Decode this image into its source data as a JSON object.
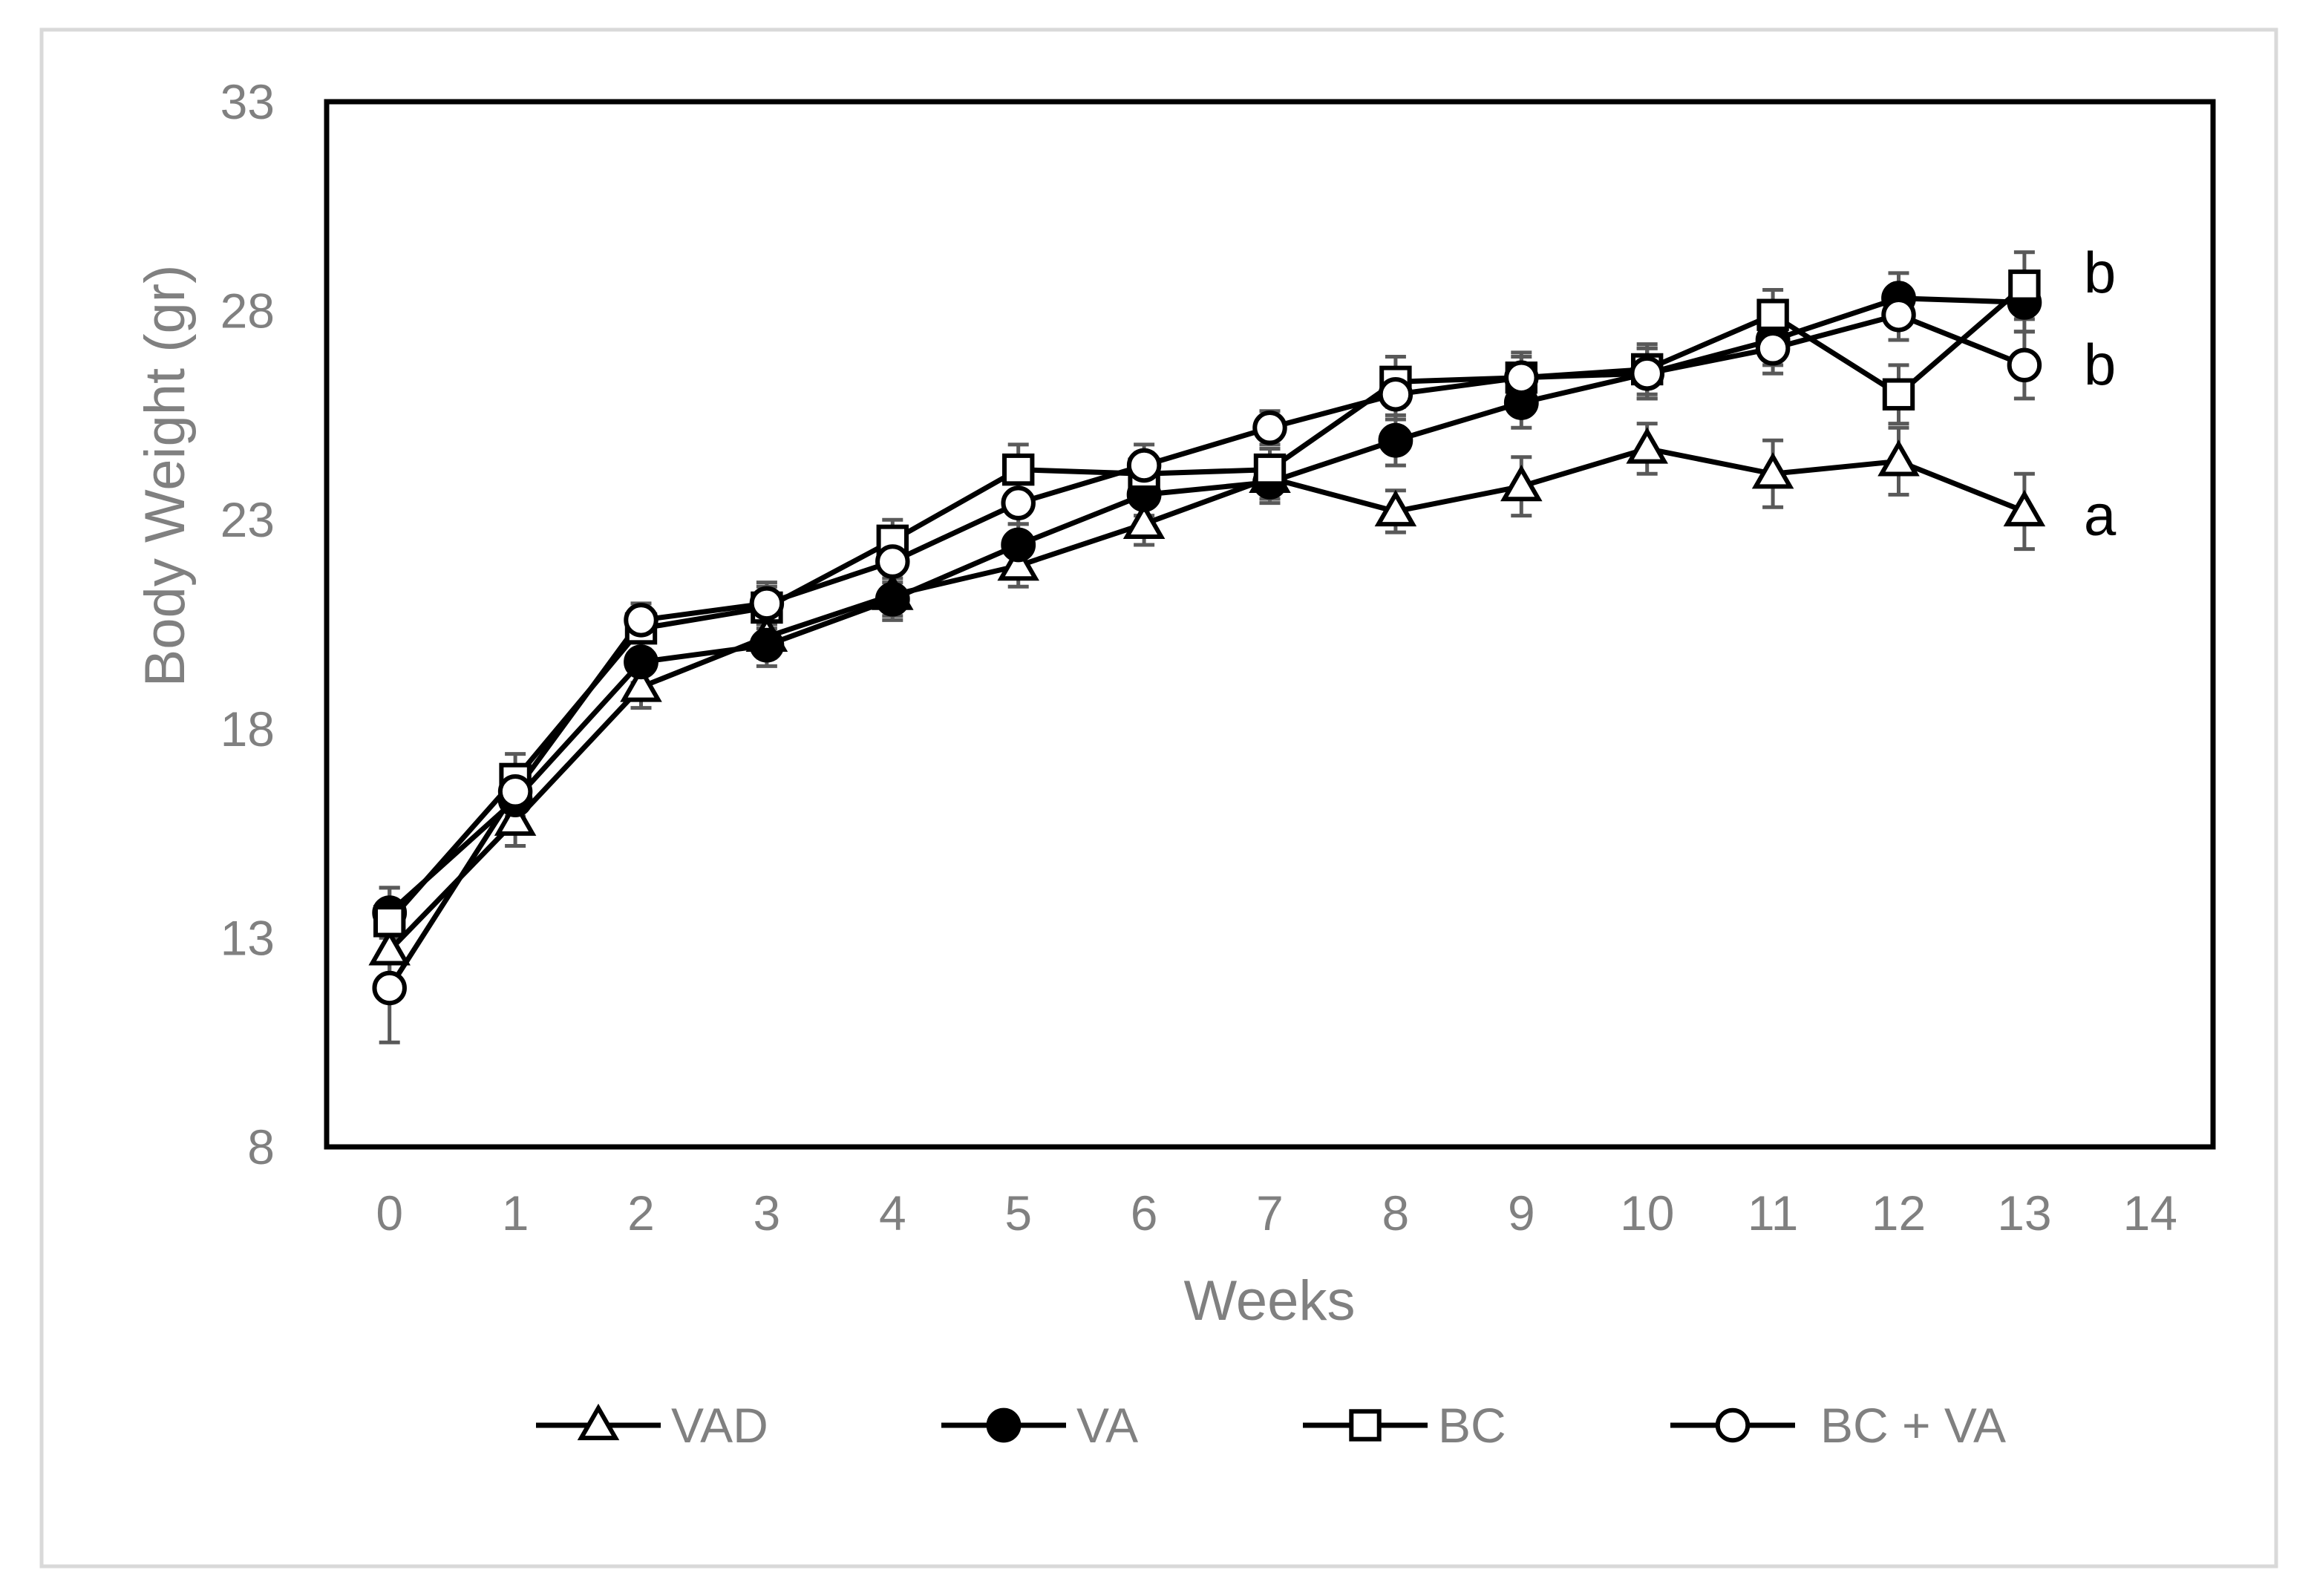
{
  "chart_data": {
    "type": "line",
    "title": "",
    "xlabel": "Weeks",
    "ylabel": "Body Weight (gr)",
    "xlim": [
      -0.5,
      14.5
    ],
    "ylim": [
      8,
      33
    ],
    "x_ticks": [
      0,
      1,
      2,
      3,
      4,
      5,
      6,
      7,
      8,
      9,
      10,
      11,
      12,
      13,
      14
    ],
    "y_ticks": [
      8,
      13,
      18,
      23,
      28,
      33
    ],
    "grid": false,
    "legend_position": "bottom",
    "x": [
      0,
      1,
      2,
      3,
      4,
      5,
      6,
      7,
      8,
      9,
      10,
      11,
      12,
      13
    ],
    "series": [
      {
        "name": "VAD",
        "marker": "open-triangle",
        "values": [
          12.7,
          15.8,
          19.0,
          20.2,
          21.2,
          21.9,
          22.9,
          24.0,
          23.2,
          23.8,
          24.7,
          24.1,
          24.4,
          23.2
        ],
        "errors": [
          0.7,
          0.6,
          0.5,
          0.5,
          0.5,
          0.5,
          0.5,
          0.5,
          0.5,
          0.7,
          0.6,
          0.8,
          0.8,
          0.9
        ]
      },
      {
        "name": "VA",
        "marker": "filled-circle",
        "values": [
          13.6,
          16.3,
          19.6,
          20.0,
          21.1,
          22.4,
          23.6,
          23.9,
          24.9,
          25.8,
          26.5,
          27.3,
          28.3,
          28.2
        ],
        "errors": [
          0.6,
          0.5,
          0.5,
          0.5,
          0.5,
          0.5,
          0.5,
          0.5,
          0.6,
          0.6,
          0.6,
          0.6,
          0.6,
          0.7
        ]
      },
      {
        "name": "BC",
        "marker": "open-square",
        "values": [
          13.4,
          16.8,
          20.4,
          20.9,
          22.5,
          24.2,
          24.1,
          24.2,
          26.3,
          26.4,
          26.6,
          27.9,
          26.0,
          28.6
        ],
        "errors": [
          0.8,
          0.6,
          0.5,
          0.5,
          0.5,
          0.6,
          0.5,
          0.5,
          0.6,
          0.6,
          0.6,
          0.6,
          0.7,
          0.8
        ]
      },
      {
        "name": "BC + VA",
        "marker": "open-circle",
        "values": [
          11.8,
          16.5,
          20.6,
          21.0,
          22.0,
          23.4,
          24.3,
          25.2,
          26.0,
          26.4,
          26.5,
          27.1,
          27.9,
          26.7
        ],
        "errors": [
          1.3,
          0.6,
          0.4,
          0.5,
          0.5,
          0.5,
          0.5,
          0.4,
          0.6,
          0.5,
          0.6,
          0.6,
          0.6,
          0.8
        ]
      }
    ],
    "annotations": [
      {
        "text": "b",
        "x": 13.6,
        "y": 28.9
      },
      {
        "text": "b",
        "x": 13.6,
        "y": 26.7
      },
      {
        "text": "a",
        "x": 13.6,
        "y": 23.1
      }
    ]
  },
  "colors": {
    "series_line": "#000000",
    "error_bar": "#595959",
    "axis_text": "#808080",
    "plot_border": "#000000",
    "outer_border": "#d9d9d9"
  }
}
